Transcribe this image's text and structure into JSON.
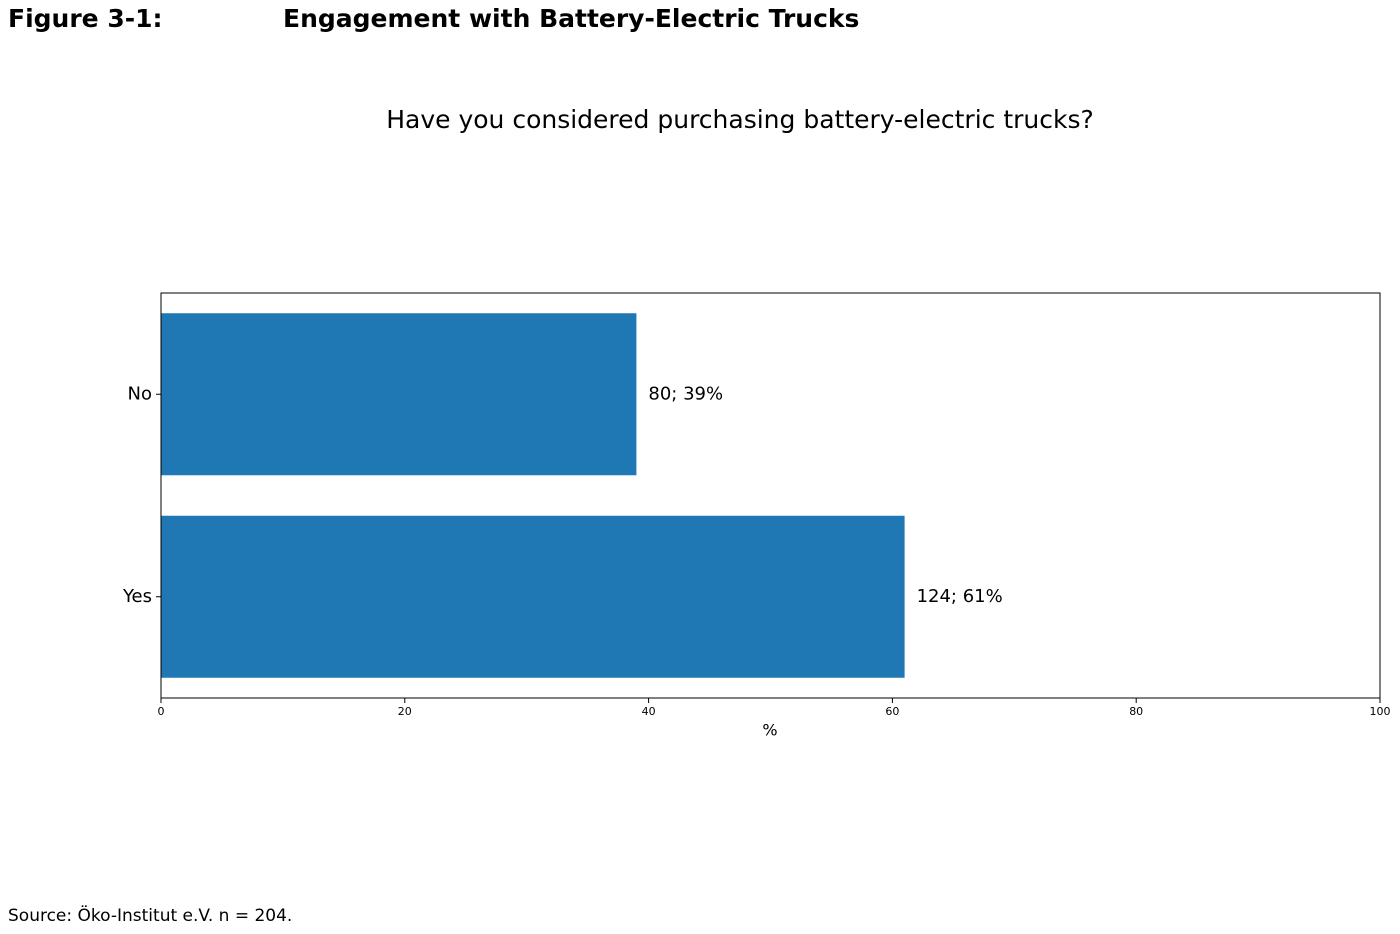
{
  "chart_data": {
    "type": "barh",
    "figure_label": "Figure 3-1:",
    "title": "Engagement with Battery-Electric Trucks",
    "subtitle": "Have you considered purchasing battery-electric trucks?",
    "categories": [
      "No",
      "Yes"
    ],
    "values": [
      39,
      61
    ],
    "value_labels": [
      "80; 39%",
      "124; 61%"
    ],
    "color": "#1f77b4",
    "xlabel": "%",
    "xlim": [
      0,
      100
    ],
    "xticks": [
      0,
      20,
      40,
      60,
      80,
      100
    ],
    "grid": false,
    "source": "Source: Öko-Institut e.V. n = 204."
  }
}
